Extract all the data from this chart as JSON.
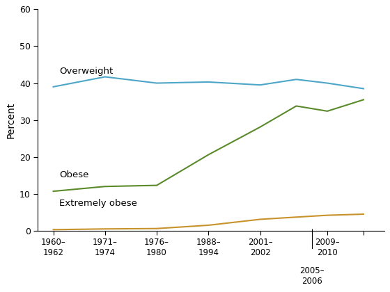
{
  "overweight": [
    39.0,
    41.7,
    40.0,
    40.3,
    39.5,
    41.0,
    40.0,
    38.5
  ],
  "obese": [
    10.7,
    12.0,
    12.3,
    20.6,
    28.1,
    33.8,
    32.4,
    35.5
  ],
  "extremely_obese": [
    0.3,
    0.5,
    0.6,
    1.5,
    3.1,
    3.7,
    4.2,
    4.5
  ],
  "x_vals": [
    0,
    1,
    2,
    3,
    4,
    4.7,
    5.3,
    6
  ],
  "overweight_color": "#4da6c8",
  "obese_color": "#5a8a2a",
  "extreme_color": "#c8922a",
  "ylabel": "Percent",
  "ylim": [
    0,
    60
  ],
  "yticks": [
    0,
    10,
    20,
    30,
    40,
    50,
    60
  ],
  "overweight_label": "Overweight",
  "obese_label": "Obese",
  "extreme_label": "Extremely obese",
  "tick_positions": [
    0,
    1,
    2,
    3,
    4,
    4.7,
    5.3,
    6
  ],
  "tick_labels": [
    "1960–1962",
    "1971–1974",
    "1976–1980",
    "1988–1994",
    "2001–2002",
    "",
    "2009–2010",
    ""
  ],
  "divider_x": 5.0,
  "divider_label": "2005–\n2006",
  "xlim": [
    -0.3,
    6.4
  ]
}
